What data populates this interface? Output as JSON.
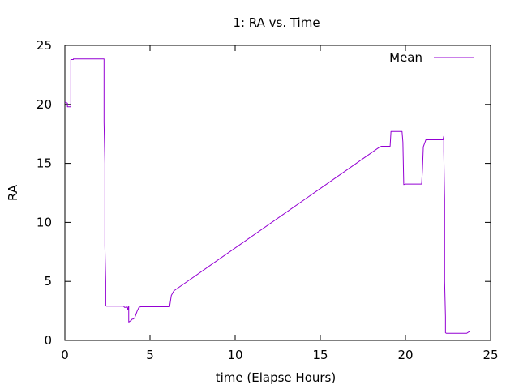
{
  "chart_data": {
    "type": "line",
    "title": "1: RA vs. Time",
    "xlabel": "time (Elapse Hours)",
    "ylabel": "RA",
    "xlim": [
      0,
      25
    ],
    "ylim": [
      0,
      25
    ],
    "xticks": [
      0,
      5,
      10,
      15,
      20,
      25
    ],
    "yticks": [
      0,
      5,
      10,
      15,
      20,
      25
    ],
    "grid": false,
    "legend_position": "top-right",
    "series": [
      {
        "name": "Mean",
        "color": "#9400d3",
        "x": [
          0,
          0.15,
          0.15,
          0.35,
          0.35,
          0.5,
          0.5,
          2.3,
          2.3,
          2.35,
          2.35,
          2.4,
          2.4,
          2.45,
          2.45,
          3.45,
          3.5,
          3.6,
          3.65,
          3.7,
          3.75,
          3.75,
          3.8,
          3.9,
          3.95,
          4.0,
          4.05,
          4.1,
          4.25,
          4.35,
          4.45,
          4.5,
          5.8,
          6.15,
          6.25,
          6.4,
          18.5,
          18.6,
          19.1,
          19.15,
          19.8,
          19.85,
          19.9,
          20.0,
          20.95,
          21.0,
          21.05,
          21.2,
          22.2,
          22.25,
          22.25,
          22.3,
          22.3,
          22.35,
          22.35,
          22.4,
          23.6,
          23.7,
          23.8
        ],
        "y": [
          20.2,
          20.1,
          19.8,
          19.8,
          23.8,
          23.8,
          23.85,
          23.85,
          18.5,
          15,
          8,
          5,
          2.95,
          2.9,
          2.9,
          2.9,
          2.8,
          2.8,
          2.9,
          2.6,
          2.9,
          1.55,
          1.6,
          1.7,
          1.8,
          1.8,
          1.85,
          1.9,
          2.5,
          2.8,
          2.85,
          2.85,
          2.85,
          2.85,
          3.8,
          4.2,
          16.4,
          16.45,
          16.45,
          17.7,
          17.7,
          16.8,
          13.2,
          13.25,
          13.25,
          14.5,
          16.4,
          17,
          17,
          17.3,
          16,
          12,
          5,
          2,
          0.65,
          0.6,
          0.6,
          0.7,
          0.75
        ]
      }
    ]
  }
}
